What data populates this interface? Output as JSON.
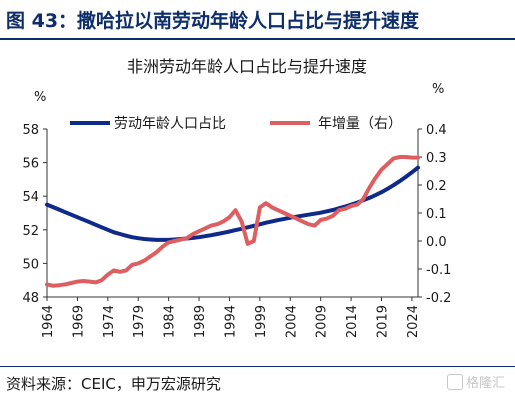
{
  "figure": {
    "title": "图 43：撒哈拉以南劳动年龄人口占比与提升速度",
    "source": "资料来源：CEIC，申万宏源研究",
    "watermark": "格隆汇"
  },
  "colors": {
    "header": "#0d2d6b",
    "series1": "#0e2a8a",
    "series2": "#de5f61"
  },
  "chart_data": {
    "type": "line",
    "title": "非洲劳动年龄人口占比与提升速度",
    "left_unit": "%",
    "right_unit": "%",
    "y_left": {
      "range": [
        48,
        58
      ],
      "ticks": [
        "48",
        "50",
        "52",
        "54",
        "56",
        "58"
      ]
    },
    "y_right": {
      "range": [
        -0.2,
        0.4
      ],
      "ticks": [
        "-0.2",
        "-0.1",
        "0.0",
        "0.1",
        "0.2",
        "0.3",
        "0.4"
      ]
    },
    "x_range": [
      1964,
      2025
    ],
    "x_ticks": [
      "1964",
      "1969",
      "1974",
      "1979",
      "1984",
      "1989",
      "1994",
      "1999",
      "2004",
      "2009",
      "2014",
      "2019",
      "2024"
    ],
    "grid": false,
    "legend_position": "top",
    "series": [
      {
        "name": "劳动年龄人口占比",
        "axis": "left",
        "x": [
          1964,
          1965,
          1966,
          1967,
          1968,
          1969,
          1970,
          1971,
          1972,
          1973,
          1974,
          1975,
          1976,
          1977,
          1978,
          1979,
          1980,
          1981,
          1982,
          1983,
          1984,
          1985,
          1986,
          1987,
          1988,
          1989,
          1990,
          1991,
          1992,
          1993,
          1994,
          1995,
          1996,
          1997,
          1998,
          1999,
          2000,
          2001,
          2002,
          2003,
          2004,
          2005,
          2006,
          2007,
          2008,
          2009,
          2010,
          2011,
          2012,
          2013,
          2014,
          2015,
          2016,
          2017,
          2018,
          2019,
          2020,
          2021,
          2022,
          2023,
          2024,
          2025
        ],
        "values": [
          53.5,
          53.35,
          53.2,
          53.05,
          52.9,
          52.75,
          52.6,
          52.45,
          52.3,
          52.15,
          52.0,
          51.85,
          51.75,
          51.65,
          51.56,
          51.5,
          51.45,
          51.42,
          51.4,
          51.4,
          51.4,
          51.42,
          51.45,
          51.48,
          51.52,
          51.56,
          51.62,
          51.68,
          51.75,
          51.82,
          51.9,
          51.98,
          52.06,
          52.15,
          52.24,
          52.33,
          52.42,
          52.5,
          52.58,
          52.65,
          52.72,
          52.78,
          52.84,
          52.9,
          52.96,
          53.02,
          53.1,
          53.18,
          53.28,
          53.38,
          53.5,
          53.62,
          53.76,
          53.9,
          54.06,
          54.24,
          54.44,
          54.66,
          54.9,
          55.15,
          55.42,
          55.7
        ]
      },
      {
        "name": "年增量（右）",
        "axis": "right",
        "x": [
          1964,
          1965,
          1966,
          1967,
          1968,
          1969,
          1970,
          1971,
          1972,
          1973,
          1974,
          1975,
          1976,
          1977,
          1978,
          1979,
          1980,
          1981,
          1982,
          1983,
          1984,
          1985,
          1986,
          1987,
          1988,
          1989,
          1990,
          1991,
          1992,
          1993,
          1994,
          1995,
          1996,
          1997,
          1998,
          1999,
          2000,
          2001,
          2002,
          2003,
          2004,
          2005,
          2006,
          2007,
          2008,
          2009,
          2010,
          2011,
          2012,
          2013,
          2014,
          2015,
          2016,
          2017,
          2018,
          2019,
          2020,
          2021,
          2022,
          2023,
          2024,
          2025
        ],
        "values": [
          -0.155,
          -0.16,
          -0.158,
          -0.155,
          -0.15,
          -0.145,
          -0.143,
          -0.145,
          -0.148,
          -0.14,
          -0.12,
          -0.105,
          -0.11,
          -0.105,
          -0.085,
          -0.08,
          -0.07,
          -0.055,
          -0.04,
          -0.02,
          -0.005,
          0.0,
          0.005,
          0.01,
          0.025,
          0.035,
          0.045,
          0.055,
          0.06,
          0.07,
          0.085,
          0.11,
          0.07,
          -0.01,
          0.0,
          0.12,
          0.135,
          0.12,
          0.11,
          0.1,
          0.09,
          0.08,
          0.07,
          0.06,
          0.055,
          0.075,
          0.08,
          0.09,
          0.11,
          0.115,
          0.125,
          0.13,
          0.15,
          0.19,
          0.225,
          0.255,
          0.275,
          0.295,
          0.3,
          0.3,
          0.298,
          0.298
        ]
      }
    ]
  }
}
